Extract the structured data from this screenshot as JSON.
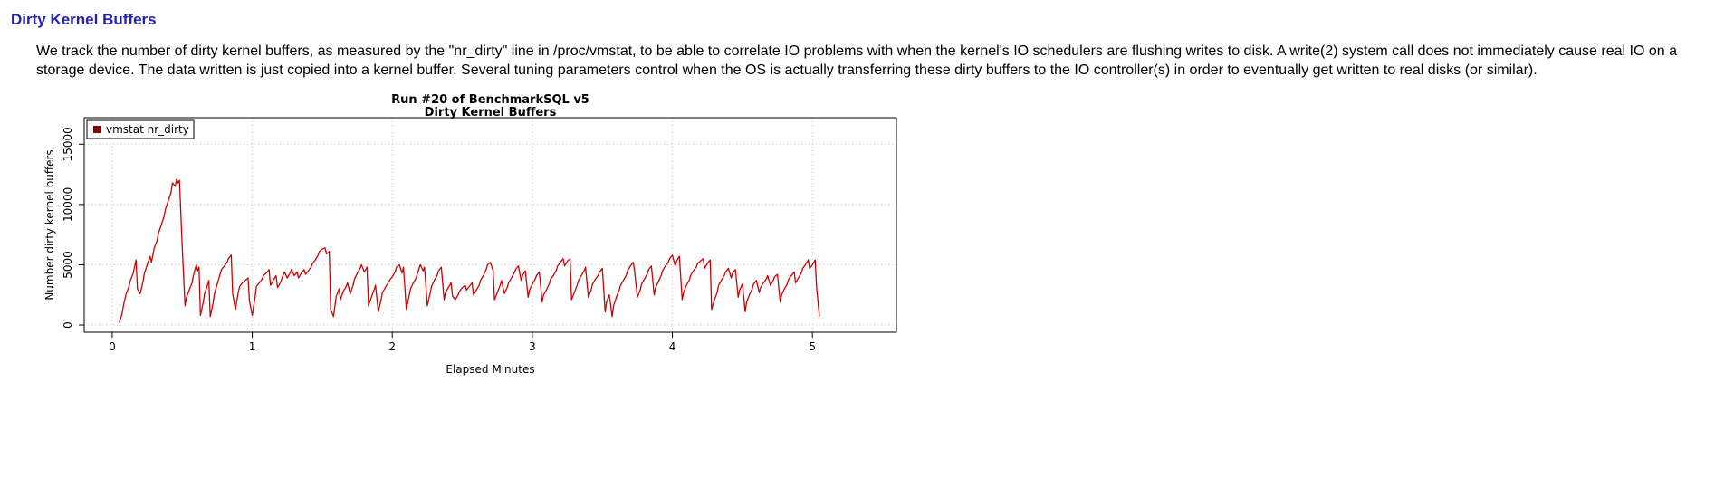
{
  "page": {
    "heading": "Dirty Kernel Buffers",
    "description": "We track the number of dirty kernel buffers, as measured by the \"nr_dirty\" line in /proc/vmstat, to be able to correlate IO problems with when the kernel's IO schedulers are flushing writes to disk. A write(2) system call does not immediately cause real IO on a storage device. The data written is just copied into a kernel buffer. Several tuning parameters control when the OS is actually transferring these dirty buffers to the IO controller(s) in order to eventually get written to real disks (or similar)."
  },
  "colors": {
    "heading": "#2222aa",
    "line": "#cc0000",
    "legend_marker": "#8b0000",
    "grid": "#c9c9c9",
    "axis": "#000000"
  },
  "chart_data": {
    "type": "line",
    "title": "Run #20 of BenchmarkSQL v5",
    "subtitle": "Dirty Kernel Buffers",
    "xlabel": "Elapsed Minutes",
    "ylabel": "Number dirty kernel buffers",
    "xticks": [
      0,
      1,
      2,
      3,
      4,
      5
    ],
    "yticks": [
      0,
      5000,
      10000,
      15000
    ],
    "xlim": [
      -0.2,
      5.6
    ],
    "ylim": [
      -600,
      17200
    ],
    "grid": true,
    "legend_position": "top-left",
    "legend": [
      {
        "label": "vmstat nr_dirty",
        "color": "#8b0000"
      }
    ],
    "series": [
      {
        "name": "vmstat nr_dirty",
        "color": "#cc0000",
        "points": [
          [
            0.05,
            200
          ],
          [
            0.07,
            900
          ],
          [
            0.08,
            1600
          ],
          [
            0.1,
            2600
          ],
          [
            0.12,
            3200
          ],
          [
            0.13,
            3700
          ],
          [
            0.15,
            4300
          ],
          [
            0.17,
            5400
          ],
          [
            0.18,
            3000
          ],
          [
            0.2,
            2600
          ],
          [
            0.22,
            3600
          ],
          [
            0.23,
            4300
          ],
          [
            0.25,
            5000
          ],
          [
            0.27,
            5700
          ],
          [
            0.28,
            5200
          ],
          [
            0.3,
            6400
          ],
          [
            0.32,
            7000
          ],
          [
            0.33,
            7600
          ],
          [
            0.35,
            8300
          ],
          [
            0.37,
            9000
          ],
          [
            0.38,
            9600
          ],
          [
            0.4,
            10300
          ],
          [
            0.42,
            11000
          ],
          [
            0.43,
            11800
          ],
          [
            0.45,
            11500
          ],
          [
            0.46,
            12100
          ],
          [
            0.47,
            11800
          ],
          [
            0.48,
            12000
          ],
          [
            0.5,
            6500
          ],
          [
            0.52,
            1600
          ],
          [
            0.53,
            2300
          ],
          [
            0.55,
            2900
          ],
          [
            0.57,
            3500
          ],
          [
            0.58,
            4100
          ],
          [
            0.6,
            5000
          ],
          [
            0.61,
            4500
          ],
          [
            0.62,
            4800
          ],
          [
            0.63,
            800
          ],
          [
            0.65,
            1900
          ],
          [
            0.66,
            2600
          ],
          [
            0.68,
            3300
          ],
          [
            0.69,
            3700
          ],
          [
            0.7,
            700
          ],
          [
            0.72,
            1800
          ],
          [
            0.73,
            2600
          ],
          [
            0.75,
            3400
          ],
          [
            0.77,
            4200
          ],
          [
            0.78,
            4600
          ],
          [
            0.8,
            4900
          ],
          [
            0.82,
            5200
          ],
          [
            0.83,
            5500
          ],
          [
            0.85,
            5800
          ],
          [
            0.86,
            2600
          ],
          [
            0.88,
            1300
          ],
          [
            0.9,
            2700
          ],
          [
            0.91,
            3200
          ],
          [
            0.93,
            3500
          ],
          [
            0.95,
            3700
          ],
          [
            0.97,
            3900
          ],
          [
            0.98,
            2000
          ],
          [
            1.0,
            800
          ],
          [
            1.02,
            2300
          ],
          [
            1.03,
            3200
          ],
          [
            1.05,
            3500
          ],
          [
            1.07,
            3800
          ],
          [
            1.08,
            4100
          ],
          [
            1.1,
            4300
          ],
          [
            1.12,
            4600
          ],
          [
            1.13,
            3300
          ],
          [
            1.15,
            3700
          ],
          [
            1.17,
            4100
          ],
          [
            1.18,
            3100
          ],
          [
            1.2,
            3500
          ],
          [
            1.22,
            4100
          ],
          [
            1.23,
            4400
          ],
          [
            1.25,
            3900
          ],
          [
            1.27,
            4300
          ],
          [
            1.28,
            4600
          ],
          [
            1.3,
            4100
          ],
          [
            1.32,
            4400
          ],
          [
            1.33,
            3900
          ],
          [
            1.35,
            4300
          ],
          [
            1.37,
            4600
          ],
          [
            1.38,
            4200
          ],
          [
            1.4,
            4500
          ],
          [
            1.42,
            4800
          ],
          [
            1.43,
            5100
          ],
          [
            1.45,
            5400
          ],
          [
            1.47,
            5800
          ],
          [
            1.48,
            6100
          ],
          [
            1.5,
            6300
          ],
          [
            1.52,
            6400
          ],
          [
            1.53,
            5900
          ],
          [
            1.55,
            6100
          ],
          [
            1.56,
            1300
          ],
          [
            1.58,
            700
          ],
          [
            1.6,
            2400
          ],
          [
            1.62,
            3000
          ],
          [
            1.63,
            2100
          ],
          [
            1.65,
            2800
          ],
          [
            1.67,
            3200
          ],
          [
            1.68,
            3500
          ],
          [
            1.7,
            2600
          ],
          [
            1.72,
            3300
          ],
          [
            1.73,
            3800
          ],
          [
            1.75,
            4300
          ],
          [
            1.77,
            4700
          ],
          [
            1.78,
            5000
          ],
          [
            1.8,
            4400
          ],
          [
            1.82,
            4800
          ],
          [
            1.83,
            1600
          ],
          [
            1.85,
            2300
          ],
          [
            1.87,
            2900
          ],
          [
            1.88,
            3300
          ],
          [
            1.9,
            1100
          ],
          [
            1.92,
            2100
          ],
          [
            1.93,
            2700
          ],
          [
            1.95,
            3100
          ],
          [
            1.97,
            3500
          ],
          [
            1.98,
            3700
          ],
          [
            2.0,
            4000
          ],
          [
            2.02,
            4400
          ],
          [
            2.03,
            4800
          ],
          [
            2.05,
            5000
          ],
          [
            2.07,
            4300
          ],
          [
            2.08,
            4800
          ],
          [
            2.1,
            1300
          ],
          [
            2.12,
            2400
          ],
          [
            2.13,
            3000
          ],
          [
            2.15,
            3500
          ],
          [
            2.17,
            3900
          ],
          [
            2.18,
            4300
          ],
          [
            2.2,
            5000
          ],
          [
            2.22,
            4500
          ],
          [
            2.23,
            4800
          ],
          [
            2.25,
            1600
          ],
          [
            2.27,
            2600
          ],
          [
            2.28,
            3200
          ],
          [
            2.3,
            3700
          ],
          [
            2.32,
            4100
          ],
          [
            2.33,
            4500
          ],
          [
            2.35,
            4800
          ],
          [
            2.37,
            2100
          ],
          [
            2.38,
            2700
          ],
          [
            2.4,
            3100
          ],
          [
            2.42,
            3500
          ],
          [
            2.43,
            2400
          ],
          [
            2.45,
            2100
          ],
          [
            2.47,
            2500
          ],
          [
            2.48,
            2800
          ],
          [
            2.5,
            3100
          ],
          [
            2.52,
            3300
          ],
          [
            2.53,
            2900
          ],
          [
            2.55,
            3200
          ],
          [
            2.57,
            3500
          ],
          [
            2.58,
            2500
          ],
          [
            2.6,
            2900
          ],
          [
            2.62,
            3300
          ],
          [
            2.63,
            3700
          ],
          [
            2.65,
            4100
          ],
          [
            2.67,
            4600
          ],
          [
            2.68,
            5000
          ],
          [
            2.7,
            5200
          ],
          [
            2.72,
            4500
          ],
          [
            2.73,
            2100
          ],
          [
            2.75,
            2700
          ],
          [
            2.77,
            3300
          ],
          [
            2.78,
            3700
          ],
          [
            2.8,
            2600
          ],
          [
            2.82,
            3100
          ],
          [
            2.83,
            3500
          ],
          [
            2.85,
            3900
          ],
          [
            2.87,
            4300
          ],
          [
            2.88,
            4600
          ],
          [
            2.9,
            4900
          ],
          [
            2.92,
            3700
          ],
          [
            2.93,
            4100
          ],
          [
            2.95,
            4500
          ],
          [
            2.97,
            2300
          ],
          [
            2.98,
            2900
          ],
          [
            3.0,
            3400
          ],
          [
            3.02,
            3800
          ],
          [
            3.03,
            4100
          ],
          [
            3.05,
            4400
          ],
          [
            3.07,
            1900
          ],
          [
            3.08,
            2500
          ],
          [
            3.1,
            2900
          ],
          [
            3.12,
            3400
          ],
          [
            3.13,
            3800
          ],
          [
            3.15,
            4100
          ],
          [
            3.17,
            4500
          ],
          [
            3.18,
            4900
          ],
          [
            3.2,
            5200
          ],
          [
            3.22,
            5500
          ],
          [
            3.23,
            4900
          ],
          [
            3.25,
            5300
          ],
          [
            3.27,
            5500
          ],
          [
            3.28,
            2100
          ],
          [
            3.3,
            2700
          ],
          [
            3.32,
            3300
          ],
          [
            3.33,
            3700
          ],
          [
            3.35,
            4100
          ],
          [
            3.37,
            4500
          ],
          [
            3.38,
            4800
          ],
          [
            3.4,
            2300
          ],
          [
            3.42,
            2900
          ],
          [
            3.43,
            3400
          ],
          [
            3.45,
            3800
          ],
          [
            3.47,
            4100
          ],
          [
            3.48,
            4400
          ],
          [
            3.5,
            4700
          ],
          [
            3.52,
            1100
          ],
          [
            3.53,
            1900
          ],
          [
            3.55,
            2500
          ],
          [
            3.57,
            700
          ],
          [
            3.58,
            1600
          ],
          [
            3.6,
            2300
          ],
          [
            3.62,
            2900
          ],
          [
            3.63,
            3300
          ],
          [
            3.65,
            3700
          ],
          [
            3.67,
            4100
          ],
          [
            3.68,
            4500
          ],
          [
            3.7,
            4900
          ],
          [
            3.72,
            5200
          ],
          [
            3.73,
            4500
          ],
          [
            3.75,
            2300
          ],
          [
            3.77,
            2900
          ],
          [
            3.78,
            3400
          ],
          [
            3.8,
            3800
          ],
          [
            3.82,
            4200
          ],
          [
            3.83,
            4600
          ],
          [
            3.85,
            4900
          ],
          [
            3.87,
            2500
          ],
          [
            3.88,
            3100
          ],
          [
            3.9,
            3600
          ],
          [
            3.92,
            4100
          ],
          [
            3.93,
            4500
          ],
          [
            3.95,
            4900
          ],
          [
            3.97,
            5200
          ],
          [
            3.98,
            5500
          ],
          [
            4.0,
            5800
          ],
          [
            4.02,
            4900
          ],
          [
            4.03,
            5300
          ],
          [
            4.05,
            5700
          ],
          [
            4.07,
            2100
          ],
          [
            4.08,
            2700
          ],
          [
            4.1,
            3300
          ],
          [
            4.12,
            3700
          ],
          [
            4.13,
            4100
          ],
          [
            4.15,
            4500
          ],
          [
            4.17,
            4800
          ],
          [
            4.18,
            5100
          ],
          [
            4.2,
            5300
          ],
          [
            4.22,
            5500
          ],
          [
            4.23,
            4700
          ],
          [
            4.25,
            5100
          ],
          [
            4.27,
            5400
          ],
          [
            4.28,
            1300
          ],
          [
            4.3,
            2100
          ],
          [
            4.32,
            2700
          ],
          [
            4.33,
            3300
          ],
          [
            4.35,
            3700
          ],
          [
            4.37,
            4100
          ],
          [
            4.38,
            4400
          ],
          [
            4.4,
            4700
          ],
          [
            4.42,
            3900
          ],
          [
            4.43,
            4300
          ],
          [
            4.45,
            4600
          ],
          [
            4.47,
            2300
          ],
          [
            4.48,
            2900
          ],
          [
            4.5,
            3400
          ],
          [
            4.52,
            1100
          ],
          [
            4.53,
            1900
          ],
          [
            4.55,
            2500
          ],
          [
            4.57,
            3000
          ],
          [
            4.58,
            3400
          ],
          [
            4.6,
            3700
          ],
          [
            4.62,
            2700
          ],
          [
            4.63,
            3100
          ],
          [
            4.65,
            3500
          ],
          [
            4.67,
            3800
          ],
          [
            4.68,
            4100
          ],
          [
            4.7,
            3300
          ],
          [
            4.72,
            3700
          ],
          [
            4.73,
            4000
          ],
          [
            4.75,
            4200
          ],
          [
            4.77,
            1900
          ],
          [
            4.78,
            2500
          ],
          [
            4.8,
            3000
          ],
          [
            4.82,
            3400
          ],
          [
            4.83,
            3800
          ],
          [
            4.85,
            4100
          ],
          [
            4.87,
            4400
          ],
          [
            4.88,
            3500
          ],
          [
            4.9,
            3900
          ],
          [
            4.92,
            4300
          ],
          [
            4.93,
            4700
          ],
          [
            4.95,
            5000
          ],
          [
            4.97,
            5400
          ],
          [
            4.98,
            4700
          ],
          [
            5.0,
            5000
          ],
          [
            5.02,
            5400
          ],
          [
            5.03,
            3100
          ],
          [
            5.05,
            700
          ]
        ]
      }
    ]
  }
}
